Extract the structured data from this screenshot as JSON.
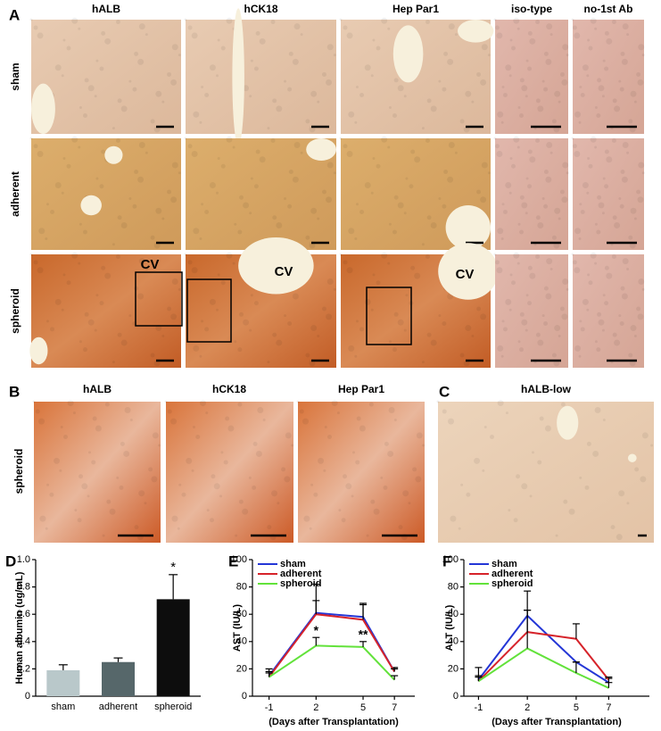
{
  "figure": {
    "panel_labels": [
      "A",
      "B",
      "C",
      "D",
      "E",
      "F"
    ],
    "a_columns": [
      "hALB",
      "hCK18",
      "Hep Par1",
      "iso-type",
      "no-1st Ab"
    ],
    "a_rows": [
      "sham",
      "adherent",
      "spheroid"
    ],
    "cv_label": "CV",
    "b_columns": [
      "hALB",
      "hCK18",
      "Hep Par1"
    ],
    "b_row": "spheroid",
    "c_title": "hALB-low"
  },
  "chart_data": [
    {
      "type": "bar",
      "ylabel": "Human albumin (ug/mL)",
      "categories": [
        "sham",
        "adherent",
        "spheroid"
      ],
      "values": [
        0.19,
        0.25,
        0.71
      ],
      "errors": [
        0.04,
        0.03,
        0.18
      ],
      "colors": [
        "#b9c8ca",
        "#56676a",
        "#0d0d0d"
      ],
      "significance": [
        null,
        null,
        "*"
      ],
      "ylim": [
        0,
        1
      ],
      "yticks": [
        0,
        0.2,
        0.4,
        0.6,
        0.8,
        {
          "value": 1,
          "label": "1.0"
        }
      ]
    },
    {
      "type": "line",
      "ylabel": "AST (IU/L)",
      "xlabel": "(Days after Transplantation)",
      "x": [
        -1,
        2,
        5,
        7
      ],
      "xlim": [
        -2.06,
        8.3
      ],
      "xticks": [
        -1,
        2,
        5,
        7
      ],
      "ylim": [
        0,
        100
      ],
      "yticks": [
        0,
        20,
        40,
        60,
        80,
        100
      ],
      "series": [
        {
          "name": "sham",
          "color": "#2436d6",
          "values": [
            15,
            61,
            58,
            18
          ],
          "errors": [
            5,
            21,
            10,
            3
          ]
        },
        {
          "name": "adherent",
          "color": "#d6232a",
          "values": [
            14,
            60,
            56,
            18
          ],
          "errors": [
            4,
            10,
            11,
            2
          ]
        },
        {
          "name": "spheroid",
          "color": "#62e23a",
          "values": [
            14,
            37,
            36,
            12
          ],
          "errors": [
            3,
            6,
            4,
            3
          ],
          "significance": [
            null,
            "*",
            "**",
            null
          ]
        }
      ]
    },
    {
      "type": "line",
      "ylabel": "ALT (IU/L)",
      "xlabel": "(Days after Transplantation)",
      "x": [
        -1,
        2,
        5,
        7
      ],
      "xlim": [
        -1.9,
        9.5
      ],
      "xticks": [
        -1,
        2,
        5,
        7
      ],
      "ylim": [
        0,
        100
      ],
      "yticks": [
        0,
        20,
        40,
        60,
        80,
        100
      ],
      "series": [
        {
          "name": "sham",
          "color": "#2436d6",
          "values": [
            12,
            59,
            25,
            10
          ],
          "errors": [
            9,
            18,
            0,
            3
          ]
        },
        {
          "name": "adherent",
          "color": "#d6232a",
          "values": [
            11,
            47,
            42,
            12
          ],
          "errors": [
            4,
            16,
            11,
            2
          ]
        },
        {
          "name": "spheroid",
          "color": "#62e23a",
          "values": [
            11,
            35,
            17,
            6
          ],
          "errors": [
            3,
            28,
            8,
            4
          ]
        }
      ]
    }
  ]
}
